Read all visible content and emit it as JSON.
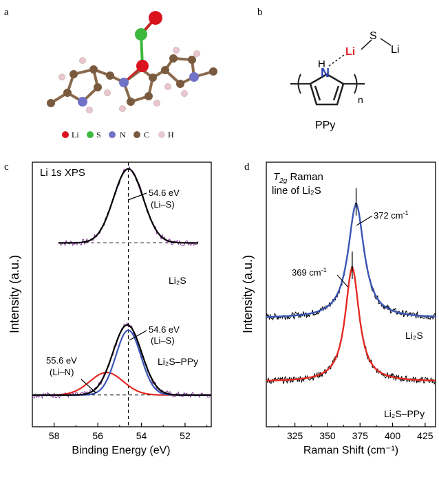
{
  "panels": {
    "a": {
      "letter": "a"
    },
    "b": {
      "letter": "b"
    },
    "c": {
      "letter": "c"
    },
    "d": {
      "letter": "d"
    }
  },
  "molecule_legend": [
    {
      "label": "Li",
      "color": "#d9121d"
    },
    {
      "label": "S",
      "color": "#3cb83c"
    },
    {
      "label": "N",
      "color": "#6f72c6"
    },
    {
      "label": "C",
      "color": "#7a5a3e"
    },
    {
      "label": "H",
      "color": "#e9c7cf"
    }
  ],
  "structure": {
    "li_label": "Li",
    "s_label": "S",
    "li2_label": "Li",
    "h_label": "H",
    "n_label": "N",
    "n_sub": "n",
    "name": "PPy",
    "li_color": "#e8232a",
    "n_color": "#2a3fb0"
  },
  "chart_data": [
    {
      "type": "line",
      "panel": "c",
      "title": "Li 1s XPS",
      "xlabel": "Binding Energy (eV)",
      "ylabel": "Intensity (a.u.)",
      "xlim": [
        59.0,
        50.8
      ],
      "x_reversed": true,
      "xticks": [
        58,
        56,
        54,
        52
      ],
      "guide_x": 54.6,
      "series": [
        {
          "name": "Li2S",
          "color": "#000000",
          "center": 54.6,
          "fwhm": 1.6,
          "baseline": 0.695,
          "amplitude": 0.28
        },
        {
          "name": "Li2S-PPy total",
          "color": "#000000",
          "center": 54.65,
          "fwhm": 1.55,
          "baseline": 0.12,
          "amplitude": 0.265
        },
        {
          "name": "Li-S component",
          "color": "#3a56b5",
          "center": 54.6,
          "fwhm": 1.35,
          "baseline": 0.12,
          "amplitude": 0.245
        },
        {
          "name": "Li-N component",
          "color": "#e42a24",
          "center": 55.6,
          "fwhm": 1.8,
          "baseline": 0.12,
          "amplitude": 0.085
        }
      ],
      "annotations": [
        {
          "text1": "54.6 eV",
          "text2": "(Li–S)"
        },
        {
          "text1": "54.6 eV",
          "text2": "(Li–S)"
        },
        {
          "text1": "55.6 eV",
          "text2": "(Li–N)"
        }
      ],
      "labels": {
        "top": "Li₂S",
        "bottom": "Li₂S–PPy"
      }
    },
    {
      "type": "line",
      "panel": "d",
      "title_italic": "T",
      "title_sub": "2g",
      "title_rest": " Raman",
      "title_line2": "line of Li₂S",
      "xlabel": "Raman Shift (cm⁻¹)",
      "ylabel": "Intensity (a.u.)",
      "xlim": [
        303,
        433
      ],
      "xticks": [
        325,
        350,
        375,
        400,
        425
      ],
      "series": [
        {
          "name": "Li2S",
          "color": "#3a56b5",
          "center": 372,
          "hwhm": 7.5,
          "baseline": 0.41,
          "amplitude": 0.43
        },
        {
          "name": "Li2S-PPy",
          "color": "#e42a24",
          "center": 369,
          "hwhm": 6.5,
          "baseline": 0.17,
          "amplitude": 0.43
        }
      ],
      "annotations": [
        {
          "text": "372 cm",
          "sup": "-1",
          "x": 372
        },
        {
          "text": "369 cm",
          "sup": "-1",
          "x": 369
        }
      ],
      "labels": {
        "top": "Li₂S",
        "bottom": "Li₂S–PPy"
      }
    }
  ]
}
